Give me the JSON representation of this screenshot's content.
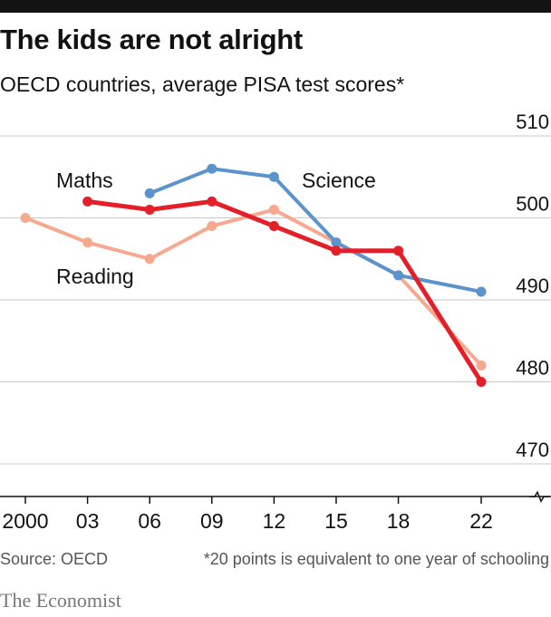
{
  "header": {
    "title": "The kids are not alright",
    "subtitle": "OECD countries, average PISA test scores*"
  },
  "footer": {
    "source": "Source: OECD",
    "footnote": "*20 points is equivalent to one year of schooling",
    "brand": "The Economist"
  },
  "chart_data": {
    "type": "line",
    "title": "The kids are not alright",
    "subtitle": "OECD countries, average PISA test scores*",
    "x": [
      2000,
      2003,
      2006,
      2009,
      2012,
      2015,
      2018,
      2022
    ],
    "x_tick_labels": [
      "2000",
      "03",
      "06",
      "09",
      "12",
      "15",
      "18",
      "22"
    ],
    "y_ticks": [
      470,
      480,
      490,
      500,
      510
    ],
    "ylim": [
      466,
      510
    ],
    "y_axis_side": "right",
    "y_axis_break": true,
    "grid": true,
    "series": [
      {
        "name": "Reading",
        "color": "#f5a98f",
        "x": [
          2000,
          2003,
          2006,
          2009,
          2012,
          2015,
          2018,
          2022
        ],
        "values": [
          500,
          497,
          495,
          499,
          501,
          497,
          493,
          482
        ]
      },
      {
        "name": "Science",
        "color": "#5b93cd",
        "x": [
          2006,
          2009,
          2012,
          2015,
          2018,
          2022
        ],
        "values": [
          503,
          506,
          505,
          497,
          493,
          491
        ]
      },
      {
        "name": "Maths",
        "color": "#e3202a",
        "x": [
          2003,
          2006,
          2009,
          2012,
          2015,
          2018,
          2022
        ],
        "values": [
          502,
          501,
          502,
          499,
          496,
          496,
          480
        ]
      }
    ]
  }
}
